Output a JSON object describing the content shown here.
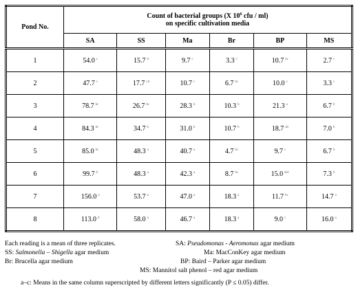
{
  "table": {
    "pond_header": "Pond No.",
    "title": [
      "Count of bacterial groups (X 10",
      "6",
      " cfu / ml)",
      "on specific cultivation media"
    ],
    "columns": [
      "SA",
      "SS",
      "Ma",
      "Br",
      "BP",
      "MS"
    ],
    "rows": [
      {
        "pond": "1",
        "cells": [
          {
            "value": "54.0",
            "sup": "c"
          },
          {
            "value": "15.7",
            "sup": "d"
          },
          {
            "value": "9.7",
            "sup": "c"
          },
          {
            "value": "3.3",
            "sup": "c"
          },
          {
            "value": "10.7",
            "sup": "bc"
          },
          {
            "value": "2.7",
            "sup": "c"
          }
        ]
      },
      {
        "pond": "2",
        "cells": [
          {
            "value": "47.7",
            "sup": "c"
          },
          {
            "value": "17.7",
            "sup": "cd"
          },
          {
            "value": "10.7",
            "sup": "c"
          },
          {
            "value": "6.7",
            "sup": "bc"
          },
          {
            "value": "10.0",
            "sup": "c"
          },
          {
            "value": "3.3",
            "sup": "c"
          }
        ]
      },
      {
        "pond": "3",
        "cells": [
          {
            "value": "78.7",
            "sup": "bc"
          },
          {
            "value": "26.7",
            "sup": "bc"
          },
          {
            "value": "28.3",
            "sup": "b"
          },
          {
            "value": "10.3",
            "sup": "b"
          },
          {
            "value": "21.3",
            "sup": "a"
          },
          {
            "value": "6.7",
            "sup": "b"
          }
        ]
      },
      {
        "pond": "4",
        "cells": [
          {
            "value": "84.3",
            "sup": "bc"
          },
          {
            "value": "34.7",
            "sup": "b"
          },
          {
            "value": "31.0",
            "sup": "b"
          },
          {
            "value": "10.7",
            "sup": "b"
          },
          {
            "value": "18.7",
            "sup": "ab"
          },
          {
            "value": "7.0",
            "sup": "b"
          }
        ]
      },
      {
        "pond": "5",
        "cells": [
          {
            "value": "85.0",
            "sup": "bc"
          },
          {
            "value": "48.3",
            "sup": "a"
          },
          {
            "value": "40.7",
            "sup": "a"
          },
          {
            "value": "4.7",
            "sup": "bc"
          },
          {
            "value": "9.7",
            "sup": "c"
          },
          {
            "value": "6.7",
            "sup": "b"
          }
        ]
      },
      {
        "pond": "6",
        "cells": [
          {
            "value": "99.7",
            "sup": "b"
          },
          {
            "value": "48.3",
            "sup": "a"
          },
          {
            "value": "42.3",
            "sup": "a"
          },
          {
            "value": "8.7",
            "sup": "bc"
          },
          {
            "value": "15.0",
            "sup": "abc"
          },
          {
            "value": "7.3",
            "sup": "b"
          }
        ]
      },
      {
        "pond": "7",
        "cells": [
          {
            "value": "156.0",
            "sup": "a"
          },
          {
            "value": "53.7",
            "sup": "a"
          },
          {
            "value": "47.0",
            "sup": "a"
          },
          {
            "value": "18.3",
            "sup": "a"
          },
          {
            "value": "11.7",
            "sup": "bc"
          },
          {
            "value": "14.7",
            "sup": "a"
          }
        ]
      },
      {
        "pond": "8",
        "cells": [
          {
            "value": "113.0",
            "sup": "b"
          },
          {
            "value": "58.0",
            "sup": "a"
          },
          {
            "value": "46.7",
            "sup": "a"
          },
          {
            "value": "18.3",
            "sup": "a"
          },
          {
            "value": "9.0",
            "sup": "c"
          },
          {
            "value": "16.0",
            "sup": "a"
          }
        ]
      }
    ]
  },
  "notes": {
    "replicates": "Each reading is a mean of three replicates.",
    "sa": [
      "SA: ",
      "Pseudomonas - Aeromonas",
      " agar medium"
    ],
    "ss": [
      "SS: ",
      "Salmonella – Shigella",
      " agar medium"
    ],
    "ma": "Ma: MacConKey agar medium",
    "br": "Br: Brucella agar medium",
    "bp": "BP: Baird – Parker agar medium",
    "ms": "MS: Mannitol salt phenol – red agar medium",
    "significance": "a–c: Means in the same column superscripted by different letters significantly (P ≤ 0.05) differ."
  }
}
